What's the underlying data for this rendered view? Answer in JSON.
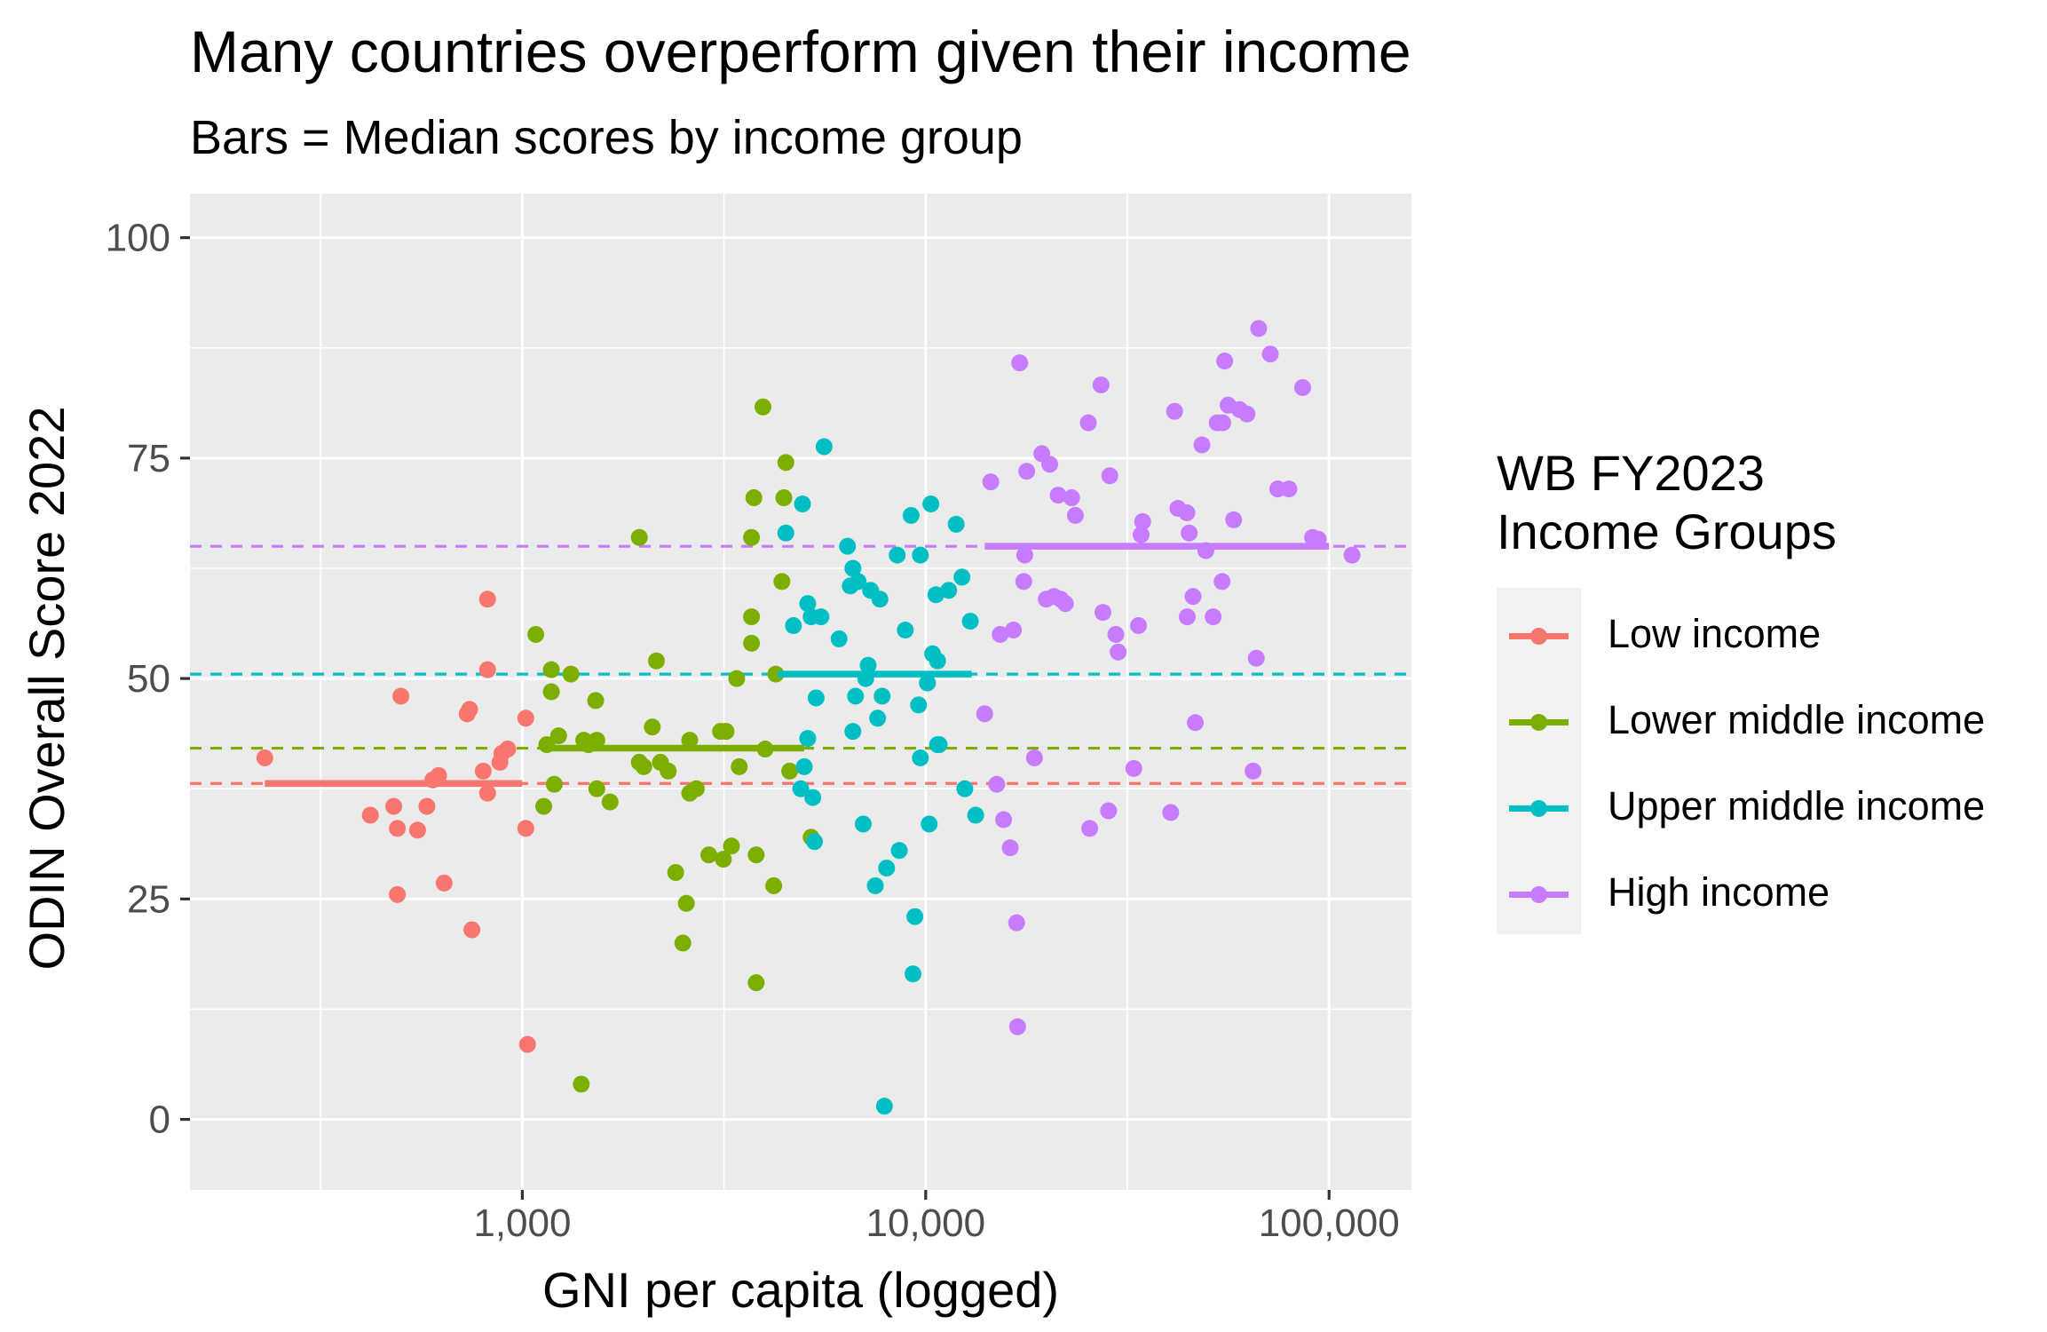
{
  "title": "Many countries overperform given their income",
  "subtitle": "Bars = Median scores by income group",
  "legend": {
    "title_lines": [
      "WB FY2023",
      "Income Groups"
    ],
    "placement": "right"
  },
  "colors": {
    "panel_bg": "#ebebeb",
    "grid": "#ffffff",
    "axis_text": "#4d4d4d",
    "legend_key_bg": "#f2f2f2"
  },
  "chart_data": {
    "type": "scatter",
    "title": "Many countries overperform given their income",
    "subtitle": "Bars = Median scores by income group",
    "xlabel": "GNI per capita (logged)",
    "ylabel": "ODIN Overall Score 2022",
    "x_scale": "log10",
    "xlim": [
      150,
      160000
    ],
    "ylim": [
      -8,
      105
    ],
    "x_ticks": [
      1000,
      10000,
      100000
    ],
    "x_tick_labels": [
      "1,000",
      "10,000",
      "100,000"
    ],
    "y_ticks": [
      0,
      25,
      50,
      75,
      100
    ],
    "y_tick_labels": [
      "0",
      "25",
      "50",
      "75",
      "100"
    ],
    "grid": true,
    "series": [
      {
        "name": "Low income",
        "color": "#f8766d",
        "median": 38.1,
        "median_range": [
          230,
          1000
        ],
        "points": [
          [
            230,
            41
          ],
          [
            420,
            34.5
          ],
          [
            480,
            35.5
          ],
          [
            490,
            33
          ],
          [
            490,
            25.5
          ],
          [
            500,
            48
          ],
          [
            550,
            32.8
          ],
          [
            580,
            35.5
          ],
          [
            600,
            38.5
          ],
          [
            620,
            39
          ],
          [
            640,
            26.8
          ],
          [
            730,
            46
          ],
          [
            740,
            46.5
          ],
          [
            750,
            21.5
          ],
          [
            800,
            39.5
          ],
          [
            820,
            51
          ],
          [
            820,
            59
          ],
          [
            820,
            37
          ],
          [
            880,
            40.5
          ],
          [
            890,
            41.5
          ],
          [
            920,
            42
          ],
          [
            1020,
            45.5
          ],
          [
            1020,
            33
          ],
          [
            1030,
            8.5
          ]
        ]
      },
      {
        "name": "Lower middle income",
        "color": "#7cae00",
        "median": 42.1,
        "median_range": [
          1150,
          5000
        ],
        "points": [
          [
            1080,
            55
          ],
          [
            1130,
            35.5
          ],
          [
            1150,
            42.5
          ],
          [
            1180,
            51
          ],
          [
            1180,
            48.5
          ],
          [
            1200,
            38
          ],
          [
            1230,
            43.5
          ],
          [
            1320,
            50.5
          ],
          [
            1400,
            4
          ],
          [
            1420,
            43
          ],
          [
            1460,
            42.5
          ],
          [
            1520,
            47.5
          ],
          [
            1530,
            43
          ],
          [
            1530,
            37.5
          ],
          [
            1650,
            36
          ],
          [
            1950,
            66
          ],
          [
            1950,
            40.5
          ],
          [
            2000,
            40
          ],
          [
            2100,
            44.5
          ],
          [
            2150,
            52
          ],
          [
            2200,
            40.5
          ],
          [
            2300,
            39.5
          ],
          [
            2400,
            28
          ],
          [
            2500,
            20
          ],
          [
            2550,
            24.5
          ],
          [
            2600,
            37
          ],
          [
            2600,
            43
          ],
          [
            2700,
            37.5
          ],
          [
            2900,
            30
          ],
          [
            3100,
            44
          ],
          [
            3150,
            29.5
          ],
          [
            3200,
            44
          ],
          [
            3300,
            31
          ],
          [
            3400,
            50
          ],
          [
            3450,
            40
          ],
          [
            3700,
            66
          ],
          [
            3700,
            57
          ],
          [
            3700,
            54
          ],
          [
            3750,
            70.5
          ],
          [
            3800,
            30
          ],
          [
            3800,
            15.5
          ],
          [
            3950,
            80.8
          ],
          [
            4000,
            42
          ],
          [
            4200,
            26.5
          ],
          [
            4250,
            50.5
          ],
          [
            4400,
            61
          ],
          [
            4450,
            70.5
          ],
          [
            4500,
            74.5
          ],
          [
            4600,
            39.5
          ],
          [
            5200,
            32
          ]
        ]
      },
      {
        "name": "Upper middle income",
        "color": "#00bfc4",
        "median": 50.5,
        "median_range": [
          4300,
          13000
        ],
        "points": [
          [
            4500,
            66.5
          ],
          [
            4700,
            56
          ],
          [
            4900,
            37.5
          ],
          [
            4950,
            69.8
          ],
          [
            5000,
            40
          ],
          [
            5100,
            58.5
          ],
          [
            5100,
            43.2
          ],
          [
            5200,
            57
          ],
          [
            5250,
            36.5
          ],
          [
            5300,
            31.5
          ],
          [
            5350,
            47.8
          ],
          [
            5500,
            57
          ],
          [
            5600,
            76.3
          ],
          [
            6100,
            54.5
          ],
          [
            6400,
            65
          ],
          [
            6500,
            60.5
          ],
          [
            6600,
            44
          ],
          [
            6600,
            62.5
          ],
          [
            6700,
            48
          ],
          [
            6800,
            61
          ],
          [
            7000,
            33.5
          ],
          [
            7100,
            50
          ],
          [
            7200,
            51.5
          ],
          [
            7300,
            60
          ],
          [
            7500,
            26.5
          ],
          [
            7600,
            45.5
          ],
          [
            7700,
            59
          ],
          [
            7800,
            48
          ],
          [
            7900,
            1.5
          ],
          [
            8000,
            28.5
          ],
          [
            8500,
            64
          ],
          [
            8600,
            30.5
          ],
          [
            8900,
            55.5
          ],
          [
            9200,
            68.5
          ],
          [
            9300,
            16.5
          ],
          [
            9400,
            23
          ],
          [
            9600,
            47
          ],
          [
            9700,
            64
          ],
          [
            9700,
            41
          ],
          [
            10100,
            49.5
          ],
          [
            10200,
            33.5
          ],
          [
            10300,
            69.8
          ],
          [
            10400,
            52.8
          ],
          [
            10600,
            59.5
          ],
          [
            10700,
            42.5
          ],
          [
            10700,
            52
          ],
          [
            10800,
            42.5
          ],
          [
            11400,
            60
          ],
          [
            11900,
            67.5
          ],
          [
            12300,
            61.5
          ],
          [
            12500,
            37.5
          ],
          [
            12900,
            56.5
          ],
          [
            13300,
            34.5
          ]
        ]
      },
      {
        "name": "High income",
        "color": "#c77cff",
        "median": 65,
        "median_range": [
          14000,
          100000
        ],
        "points": [
          [
            14000,
            46
          ],
          [
            14500,
            72.3
          ],
          [
            15000,
            38
          ],
          [
            15300,
            55
          ],
          [
            15600,
            34
          ],
          [
            16200,
            30.8
          ],
          [
            16500,
            55.5
          ],
          [
            16800,
            22.3
          ],
          [
            16900,
            10.5
          ],
          [
            17100,
            85.8
          ],
          [
            17500,
            61
          ],
          [
            17600,
            64
          ],
          [
            17800,
            73.5
          ],
          [
            18600,
            41
          ],
          [
            19400,
            75.5
          ],
          [
            19900,
            59
          ],
          [
            20300,
            74.3
          ],
          [
            20800,
            59.3
          ],
          [
            21300,
            70.8
          ],
          [
            21600,
            59
          ],
          [
            22200,
            58.5
          ],
          [
            23000,
            70.5
          ],
          [
            23500,
            68.5
          ],
          [
            25300,
            79
          ],
          [
            25500,
            33
          ],
          [
            27200,
            83.3
          ],
          [
            27500,
            57.5
          ],
          [
            28400,
            35
          ],
          [
            28600,
            73
          ],
          [
            29600,
            55
          ],
          [
            30000,
            53
          ],
          [
            32800,
            39.8
          ],
          [
            33700,
            56
          ],
          [
            34200,
            66.3
          ],
          [
            34500,
            67.8
          ],
          [
            40500,
            34.8
          ],
          [
            41400,
            80.3
          ],
          [
            42200,
            69.3
          ],
          [
            44400,
            68.8
          ],
          [
            44500,
            57
          ],
          [
            45000,
            66.5
          ],
          [
            46000,
            59.3
          ],
          [
            46600,
            45
          ],
          [
            48400,
            76.5
          ],
          [
            49500,
            64.5
          ],
          [
            51600,
            57
          ],
          [
            52800,
            79
          ],
          [
            54300,
            61
          ],
          [
            54500,
            79
          ],
          [
            55100,
            86
          ],
          [
            56200,
            81
          ],
          [
            58000,
            68
          ],
          [
            60000,
            80.5
          ],
          [
            62600,
            80
          ],
          [
            64800,
            39.5
          ],
          [
            66000,
            52.3
          ],
          [
            66900,
            89.7
          ],
          [
            71500,
            86.8
          ],
          [
            74600,
            71.5
          ],
          [
            79500,
            71.5
          ],
          [
            86000,
            83
          ],
          [
            91000,
            66
          ],
          [
            94000,
            65.8
          ],
          [
            114000,
            64
          ]
        ]
      }
    ]
  }
}
